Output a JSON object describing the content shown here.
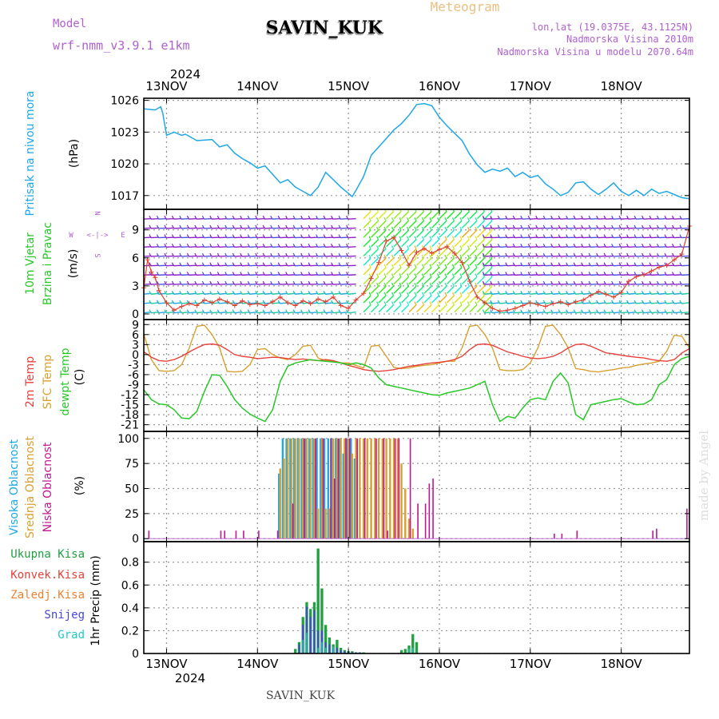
{
  "header": {
    "model_label": "Model",
    "model_name": "wrf-nmm_v3.9.1  e1km",
    "station": "SAVIN_KUK",
    "product": "Meteogram",
    "lonlat": "lon,lat (19.0375E, 43.1125N)",
    "altitude": "Nadmorska Visina 2010m",
    "model_altitude": "Nadmorska Visina u modelu 2070.64m",
    "year": "2024",
    "footer_station": "SAVIN_KUK",
    "watermark": "made by Angel"
  },
  "colors": {
    "pressure": "#1ea7e6",
    "temp2m": "#e8403a",
    "sfc_temp": "#d8a030",
    "dewpoint": "#28c828",
    "high_cloud": "#1ea7e6",
    "mid_cloud": "#d8a030",
    "low_cloud": "#c01890",
    "total_precip": "#20a040",
    "convective": "#e8403a",
    "freezing": "#f08030",
    "snow": "#4848d8",
    "graupel": "#20c8c8",
    "purple_text": "#b060d0"
  },
  "time_axis": {
    "labels": [
      "13NOV",
      "14NOV",
      "15NOV",
      "16NOV",
      "17NOV",
      "18NOV"
    ],
    "start_hour": -6,
    "end_hour": 138
  },
  "panels": {
    "pressure": {
      "ylabel_1": "Pritisak na nivou mora",
      "unit": "(hPa)",
      "ticks": [
        "1026",
        "1023",
        "1020",
        "1017"
      ],
      "tick_values": [
        1026,
        1023,
        1020,
        1017
      ],
      "ylim": [
        1015.7,
        1026.2
      ]
    },
    "wind": {
      "ylabel_1": "10m Vjetar",
      "ylabel_2": "Brzina i Pravac",
      "unit": "(m/s)",
      "compass": [
        "N",
        "E",
        "S",
        "W"
      ],
      "ticks": [
        "0",
        "3",
        "6",
        "9"
      ],
      "tick_values": [
        0,
        3,
        6,
        9
      ],
      "ylim": [
        -0.6,
        11.2
      ],
      "level_values": [
        10.2,
        9.2,
        8.2,
        7.2,
        6.2,
        5.2,
        4.2,
        3.2,
        2.2,
        1.2,
        0.2
      ]
    },
    "temperature": {
      "ylabel_1": "2m Temp",
      "ylabel_2": "SFC Temp",
      "ylabel_3": "dewpt Temp",
      "unit": "(C)",
      "ticks": [
        "9",
        "6",
        "3",
        "0",
        "-3",
        "-6",
        "-9",
        "-12",
        "-15",
        "-18",
        "-21"
      ],
      "tick_values": [
        9,
        6,
        3,
        0,
        -3,
        -6,
        -9,
        -12,
        -15,
        -18,
        -21
      ],
      "ylim": [
        -23,
        10.5
      ]
    },
    "clouds": {
      "ylabel_1": "Visoka Oblacnost",
      "ylabel_2": "Srednja Oblacnost",
      "ylabel_3": "Niska Oblacnost",
      "unit": "(%)",
      "ticks": [
        "100",
        "75",
        "50",
        "25",
        "0"
      ],
      "tick_values": [
        100,
        75,
        50,
        25,
        0
      ],
      "ylim": [
        -3,
        107
      ]
    },
    "precip": {
      "legend": [
        "Ukupna Kisa",
        "Konvek.Kisa",
        "Zaledj.Kisa",
        "Snijeg",
        "Grad"
      ],
      "ylabel": "1hr Precip (mm)",
      "ticks": [
        "0.8",
        "0.6",
        "0.4",
        "0.2",
        "0"
      ],
      "tick_values": [
        0.8,
        0.6,
        0.4,
        0.2,
        0
      ],
      "ylim": [
        0,
        0.98
      ]
    }
  },
  "chart_data": [
    {
      "type": "line",
      "ylabel": "Pritisak na nivou mora (hPa)",
      "series": [
        {
          "x": [
            -6,
            -3,
            -1.5,
            -1,
            0,
            2,
            4,
            5,
            8,
            12,
            14,
            16,
            18,
            20,
            22,
            24,
            26,
            28,
            30,
            32,
            34,
            36,
            38,
            40,
            42,
            44,
            46,
            48,
            49,
            50,
            52,
            54,
            56,
            58,
            60,
            62,
            64,
            66,
            68,
            70,
            72,
            74,
            76,
            78,
            80,
            82,
            84,
            86,
            88,
            90,
            92,
            94,
            96,
            98,
            100,
            102,
            104,
            106,
            108,
            110,
            112,
            114,
            116,
            118,
            120,
            122,
            124,
            126,
            128,
            130,
            132,
            134,
            136,
            138
          ],
          "y": [
            1025.2,
            1025.1,
            1025.4,
            1024.8,
            1022.7,
            1023.0,
            1022.7,
            1022.8,
            1022.2,
            1022.3,
            1021.6,
            1021.8,
            1021.0,
            1020.5,
            1020.1,
            1019.6,
            1019.8,
            1019.0,
            1018.2,
            1018.5,
            1017.8,
            1017.4,
            1017.0,
            1017.8,
            1019.2,
            1018.5,
            1017.8,
            1017.2,
            1016.9,
            1017.5,
            1018.8,
            1020.8,
            1021.6,
            1022.4,
            1023.2,
            1023.8,
            1024.6,
            1025.6,
            1025.7,
            1025.5,
            1024.4,
            1023.6,
            1022.9,
            1022.2,
            1020.9,
            1019.9,
            1019.2,
            1019.5,
            1019.3,
            1019.6,
            1018.8,
            1019.2,
            1018.7,
            1018.9,
            1018.1,
            1017.6,
            1017.0,
            1017.3,
            1018.2,
            1018.3,
            1017.6,
            1017.1,
            1017.6,
            1018.2,
            1017.4,
            1017.0,
            1017.5,
            1017.0,
            1017.6,
            1017.2,
            1017.4,
            1017.1,
            1016.8,
            1016.7
          ]
        }
      ]
    },
    {
      "type": "line",
      "ylabel": "10m Vjetar Brzina i Pravac (m/s)",
      "series": [
        {
          "name": "wind speed",
          "x": [
            -6,
            -5,
            -4,
            -3,
            -2,
            0,
            2,
            4,
            6,
            8,
            10,
            12,
            14,
            16,
            18,
            20,
            22,
            24,
            26,
            28,
            30,
            32,
            34,
            36,
            38,
            40,
            42,
            44,
            46,
            48,
            50,
            52,
            54,
            56,
            58,
            60,
            62,
            64,
            66,
            68,
            70,
            72,
            74,
            76,
            78,
            80,
            82,
            84,
            86,
            88,
            90,
            92,
            94,
            96,
            98,
            100,
            102,
            104,
            106,
            108,
            110,
            112,
            114,
            116,
            118,
            120,
            122,
            124,
            126,
            128,
            130,
            132,
            134,
            136,
            138
          ],
          "y": [
            2.8,
            5.8,
            4.5,
            3.9,
            2.5,
            1.2,
            0.4,
            0.8,
            1.1,
            0.9,
            1.5,
            1.2,
            1.6,
            1.3,
            0.9,
            1.4,
            1.0,
            1.1,
            0.9,
            1.3,
            1.8,
            1.2,
            0.9,
            1.4,
            1.1,
            1.6,
            1.3,
            1.8,
            0.9,
            0.6,
            1.5,
            2.2,
            3.8,
            5.5,
            7.8,
            8.2,
            6.8,
            5.2,
            6.6,
            7.0,
            6.5,
            6.9,
            7.2,
            6.5,
            5.5,
            3.5,
            1.8,
            1.2,
            0.6,
            0.3,
            0.4,
            0.6,
            0.9,
            1.2,
            1.0,
            0.8,
            1.1,
            1.3,
            1.0,
            1.3,
            1.5,
            2.0,
            2.4,
            2.1,
            1.8,
            2.3,
            3.5,
            4.0,
            4.2,
            4.6,
            5.0,
            5.2,
            5.8,
            6.4,
            9.4
          ]
        }
      ]
    },
    {
      "type": "line",
      "ylabel": "2m Temp / SFC Temp / dewpt Temp (C)",
      "x": [
        -6,
        -4,
        -2,
        0,
        2,
        4,
        6,
        8,
        10,
        12,
        14,
        16,
        18,
        20,
        22,
        24,
        26,
        28,
        30,
        32,
        34,
        36,
        38,
        40,
        42,
        44,
        46,
        48,
        50,
        52,
        54,
        56,
        58,
        60,
        62,
        64,
        66,
        68,
        70,
        72,
        74,
        76,
        78,
        80,
        82,
        84,
        86,
        88,
        90,
        92,
        94,
        96,
        98,
        100,
        102,
        104,
        106,
        108,
        110,
        112,
        114,
        116,
        118,
        120,
        122,
        124,
        126,
        128,
        130,
        132,
        134,
        136,
        138
      ],
      "series": [
        {
          "name": "2m Temp",
          "y": [
            0.8,
            -0.8,
            -1.8,
            -2.0,
            -1.5,
            -0.5,
            0.8,
            2.0,
            3.0,
            3.2,
            2.8,
            1.5,
            0.0,
            -0.5,
            -0.8,
            -1.2,
            -1.0,
            -0.8,
            -0.9,
            -1.2,
            -1.5,
            -1.3,
            -1.6,
            -1.8,
            -1.5,
            -1.8,
            -2.5,
            -3.2,
            -3.8,
            -4.5,
            -4.8,
            -5.0,
            -4.8,
            -4.5,
            -4.0,
            -3.5,
            -3.2,
            -2.8,
            -2.5,
            -2.3,
            -2.0,
            -1.5,
            -0.5,
            1.5,
            3.0,
            3.2,
            2.8,
            1.8,
            0.8,
            0.2,
            -0.5,
            -1.0,
            -1.2,
            -1.0,
            -0.5,
            0.5,
            2.0,
            3.0,
            3.2,
            2.5,
            1.5,
            0.5,
            0.2,
            -0.2,
            -0.5,
            -0.8,
            -1.0,
            -1.5,
            -1.8,
            -2.0,
            -1.5,
            0.5,
            1.8
          ]
        },
        {
          "name": "SFC Temp",
          "y": [
            6.2,
            -1.5,
            -4.8,
            -5.0,
            -4.8,
            -3.0,
            2.0,
            8.5,
            8.8,
            6.0,
            2.0,
            -5.0,
            -5.2,
            -5.0,
            -3.0,
            1.5,
            1.8,
            0.0,
            -1.0,
            -1.5,
            0.0,
            2.5,
            2.8,
            -1.0,
            -1.8,
            -2.0,
            -2.5,
            -2.5,
            -3.2,
            -4.0,
            2.5,
            2.8,
            -0.5,
            -3.8,
            -4.2,
            -4.0,
            -3.5,
            -3.2,
            -3.0,
            -2.5,
            -2.0,
            -2.0,
            2.0,
            8.5,
            8.8,
            6.0,
            2.0,
            -4.5,
            -4.8,
            -4.8,
            -4.5,
            -2.5,
            2.0,
            8.5,
            8.8,
            6.0,
            2.0,
            -4.2,
            -4.5,
            -5.0,
            -5.2,
            -4.8,
            -4.5,
            -4.0,
            -3.8,
            -3.2,
            -2.8,
            -2.5,
            -2.0,
            1.0,
            5.8,
            5.5,
            2.0
          ]
        },
        {
          "name": "dewpt Temp",
          "y": [
            -10.5,
            -13.5,
            -14.8,
            -15.0,
            -16.5,
            -19.0,
            -19.2,
            -17.0,
            -11.0,
            -6.0,
            -6.2,
            -9.5,
            -13.5,
            -16.0,
            -17.8,
            -19.0,
            -20.0,
            -16.5,
            -8.0,
            -3.5,
            -2.5,
            -2.0,
            -1.5,
            -1.8,
            -2.0,
            -2.2,
            -2.5,
            -3.0,
            -2.5,
            -3.0,
            -4.0,
            -7.0,
            -9.0,
            -9.5,
            -10.0,
            -10.5,
            -11.0,
            -11.5,
            -12.0,
            -12.2,
            -11.5,
            -11.0,
            -10.5,
            -10.0,
            -9.0,
            -8.0,
            -15.0,
            -20.0,
            -18.5,
            -19.0,
            -16.0,
            -13.5,
            -13.0,
            -13.5,
            -8.0,
            -5.5,
            -8.5,
            -18.0,
            -19.5,
            -15.0,
            -14.5,
            -14.0,
            -13.5,
            -13.2,
            -14.2,
            -15.0,
            -14.8,
            -13.5,
            -9.0,
            -7.5,
            -3.0,
            -1.2,
            -0.5
          ]
        }
      ]
    },
    {
      "type": "bar",
      "ylabel": "Visoka / Srednja / Niska Oblacnost (%)",
      "series": [
        {
          "name": "Visoka Oblacnost",
          "x": [
            30,
            31,
            32,
            33,
            34,
            35,
            36,
            37,
            38,
            39,
            40,
            41,
            42,
            43,
            44,
            45,
            46,
            47,
            48,
            49,
            50
          ],
          "y": [
            65,
            100,
            100,
            100,
            100,
            100,
            100,
            100,
            100,
            100,
            100,
            100,
            100,
            100,
            100,
            100,
            100,
            85,
            100,
            100,
            80
          ]
        },
        {
          "name": "Srednja Oblacnost",
          "x": [
            30,
            31,
            32,
            33,
            34,
            35,
            36,
            37,
            38,
            39,
            40,
            41,
            42,
            43,
            44,
            45,
            46,
            47,
            48,
            49,
            50,
            51,
            52,
            53,
            54,
            55,
            56,
            57,
            58,
            59,
            60,
            61,
            62,
            63,
            64,
            65
          ],
          "y": [
            70,
            80,
            100,
            100,
            100,
            100,
            100,
            100,
            100,
            100,
            30,
            100,
            30,
            30,
            100,
            100,
            100,
            100,
            100,
            85,
            100,
            100,
            100,
            100,
            100,
            100,
            100,
            100,
            100,
            100,
            100,
            100,
            75,
            50,
            20,
            10
          ]
        },
        {
          "name": "Niska Oblacnost",
          "x": [
            -5,
            14,
            15,
            18,
            20,
            24,
            29,
            33,
            36,
            39,
            41,
            43,
            44,
            45,
            47,
            48,
            50,
            52,
            55,
            57,
            58,
            60,
            61,
            64,
            66,
            68,
            69,
            70,
            102,
            104,
            108,
            128,
            129,
            137
          ],
          "y": [
            8,
            8,
            8,
            8,
            8,
            8,
            8,
            35,
            100,
            100,
            100,
            100,
            60,
            100,
            100,
            100,
            100,
            100,
            100,
            100,
            8,
            100,
            100,
            100,
            35,
            35,
            55,
            60,
            5,
            5,
            8,
            8,
            10,
            30
          ]
        }
      ]
    },
    {
      "type": "bar",
      "ylabel": "1hr Precip (mm)",
      "series": [
        {
          "name": "Ukupna Kisa",
          "x": [
            34,
            35,
            36,
            37,
            38,
            39,
            40,
            41,
            42,
            43,
            44,
            45,
            46,
            47,
            48,
            49,
            50,
            51,
            52,
            62,
            63,
            64,
            65,
            66
          ],
          "y": [
            0.04,
            0.1,
            0.32,
            0.45,
            0.39,
            0.45,
            0.92,
            0.57,
            0.25,
            0.14,
            0.08,
            0.12,
            0.05,
            0.03,
            0.02,
            0.02,
            0.01,
            0.01,
            0.01,
            0.03,
            0.04,
            0.07,
            0.17,
            0.1
          ]
        },
        {
          "name": "Snijeg",
          "x": [
            35,
            36,
            37,
            38,
            39,
            40,
            41,
            42,
            43,
            44,
            45,
            46,
            47,
            48,
            49,
            50,
            51
          ],
          "y": [
            0.08,
            0.25,
            0.41,
            0.32,
            0.38,
            0.2,
            0.2,
            0.1,
            0.08,
            0.05,
            0.05,
            0.03,
            0.02,
            0.02,
            0.01,
            0.01,
            0.01
          ]
        },
        {
          "name": "Grad",
          "x": [
            36,
            37,
            40,
            41,
            42,
            44,
            64,
            65
          ],
          "y": [
            0.12,
            0.18,
            0.05,
            0.1,
            0.05,
            0.06,
            0.04,
            0.05
          ]
        }
      ]
    }
  ]
}
